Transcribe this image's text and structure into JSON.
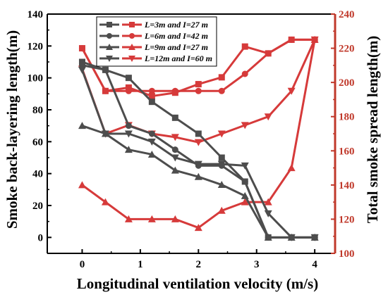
{
  "chart_data": {
    "type": "line",
    "xlabel": "Longitudinal ventilation velocity (m/s)",
    "ylabel": "Smoke back-layering length(m)",
    "y2label": "Total smoke spread length(m)",
    "xlim": [
      -0.6,
      4.35
    ],
    "ylim": [
      -10,
      140
    ],
    "y2lim": [
      100,
      240
    ],
    "xticks": [
      0,
      1,
      2,
      3,
      4
    ],
    "yticks": [
      0,
      20,
      40,
      60,
      80,
      100,
      120,
      140
    ],
    "y2ticks": [
      100,
      120,
      140,
      160,
      180,
      200,
      220,
      240
    ],
    "legend_position": "top-left",
    "colors": {
      "left_axis": "#000000",
      "right_axis": "#c0392b",
      "dark_series": "#4d4d4d",
      "red_series": "#d63a3a"
    },
    "series": [
      {
        "name": "L=3m and I=27 m",
        "axis": "left",
        "marker": "square",
        "x": [
          0,
          0.4,
          0.8,
          1.2,
          1.6,
          2.0,
          2.4,
          2.8,
          3.2,
          3.6,
          4.0
        ],
        "y": [
          110,
          105,
          100,
          85,
          75,
          65,
          50,
          35,
          0,
          0,
          0
        ]
      },
      {
        "name": "L=6m and I=42 m",
        "axis": "left",
        "marker": "circle",
        "x": [
          0,
          0.4,
          0.8,
          1.2,
          1.6,
          2.0,
          2.4,
          2.8,
          3.2,
          3.6,
          4.0
        ],
        "y": [
          108,
          105,
          70,
          65,
          55,
          45,
          45,
          35,
          0,
          0,
          0
        ]
      },
      {
        "name": "L=9m and I=27 m",
        "axis": "left",
        "marker": "triangle-up",
        "x": [
          0,
          0.4,
          0.8,
          1.2,
          1.6,
          2.0,
          2.4,
          2.8,
          3.2,
          3.6,
          4.0
        ],
        "y": [
          70,
          65,
          55,
          52,
          42,
          38,
          33,
          26,
          0,
          0,
          0
        ]
      },
      {
        "name": "L=12m and I=60 m",
        "axis": "left",
        "marker": "triangle-down",
        "x": [
          0,
          0.4,
          0.8,
          1.2,
          1.6,
          2.0,
          2.4,
          2.8,
          3.2,
          3.6,
          4.0
        ],
        "y": [
          105,
          65,
          65,
          60,
          50,
          46,
          46,
          45,
          15,
          0,
          0
        ]
      },
      {
        "axis": "right",
        "marker": "square",
        "x": [
          0,
          0.4,
          0.8,
          1.2,
          1.6,
          2.0,
          2.4,
          2.8,
          3.2,
          3.6,
          4.0
        ],
        "y": [
          220,
          195,
          197,
          192,
          194,
          199,
          203,
          221,
          217,
          225,
          225
        ]
      },
      {
        "axis": "right",
        "marker": "circle",
        "x": [
          0,
          0.4,
          0.8,
          1.2,
          1.6,
          2.0,
          2.4,
          2.8,
          3.2,
          3.6,
          4.0
        ],
        "y": [
          220,
          195,
          195,
          195,
          195,
          195,
          195,
          205,
          217,
          225,
          225
        ]
      },
      {
        "axis": "right",
        "marker": "triangle-up",
        "x": [
          0,
          0.4,
          0.8,
          1.2,
          1.6,
          2.0,
          2.4,
          2.8,
          3.2,
          3.6,
          4.0
        ],
        "y": [
          140,
          130,
          120,
          120,
          120,
          115,
          125,
          130,
          130,
          150,
          225
        ]
      },
      {
        "axis": "right",
        "marker": "triangle-down",
        "x": [
          0,
          0.4,
          0.8,
          1.2,
          1.6,
          2.0,
          2.4,
          2.8,
          3.2,
          3.6,
          4.0
        ],
        "y": [
          208,
          170,
          175,
          170,
          168,
          165,
          170,
          175,
          180,
          195,
          225
        ]
      }
    ]
  }
}
